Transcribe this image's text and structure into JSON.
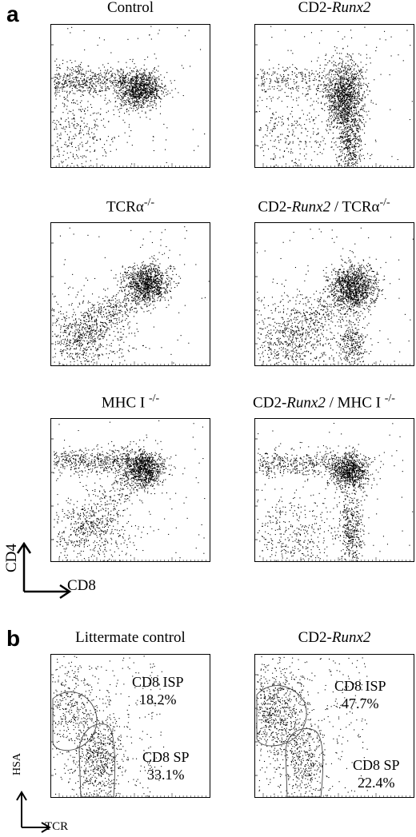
{
  "panel_a_label": "a",
  "panel_b_label": "b",
  "panel_a": {
    "x_axis_label": "CD8",
    "y_axis_label": "CD4",
    "plots": [
      {
        "title_pre": "Control",
        "title_italic": "",
        "title_post": "",
        "sup": ""
      },
      {
        "title_pre": "CD2-",
        "title_italic": "Runx2",
        "title_post": "",
        "sup": ""
      },
      {
        "title_pre": "TCRα",
        "title_italic": "",
        "title_post": "",
        "sup": "-/-"
      },
      {
        "title_pre": "CD2-",
        "title_italic": "Runx2",
        "title_post": " / TCRα",
        "sup": "-/-"
      },
      {
        "title_pre": "MHC I ",
        "title_italic": "",
        "title_post": "",
        "sup": "-/-"
      },
      {
        "title_pre": "CD2-",
        "title_italic": "Runx2",
        "title_post": " / MHC I ",
        "sup": "-/-"
      }
    ]
  },
  "panel_b": {
    "x_axis_label": "TCR",
    "y_axis_label": "HSA",
    "plots": [
      {
        "title_pre": "Littermate control",
        "title_italic": "",
        "isp_label": "CD8 ISP",
        "isp_pct": "18.2%",
        "sp_label": "CD8 SP",
        "sp_pct": "33.1%"
      },
      {
        "title_pre": "CD2-",
        "title_italic": "Runx2",
        "isp_label": "CD8 ISP",
        "isp_pct": "47.7%",
        "sp_label": "CD8 SP",
        "sp_pct": "22.4%"
      }
    ]
  },
  "chart_data": [
    {
      "type": "scatter",
      "title": "Control",
      "xlabel": "CD8",
      "ylabel": "CD4",
      "xscale": "log",
      "yscale": "log"
    },
    {
      "type": "scatter",
      "title": "CD2-Runx2",
      "xlabel": "CD8",
      "ylabel": "CD4",
      "xscale": "log",
      "yscale": "log"
    },
    {
      "type": "scatter",
      "title": "TCRα-/-",
      "xlabel": "CD8",
      "ylabel": "CD4",
      "xscale": "log",
      "yscale": "log"
    },
    {
      "type": "scatter",
      "title": "CD2-Runx2 / TCRα-/-",
      "xlabel": "CD8",
      "ylabel": "CD4",
      "xscale": "log",
      "yscale": "log"
    },
    {
      "type": "scatter",
      "title": "MHC I -/-",
      "xlabel": "CD8",
      "ylabel": "CD4",
      "xscale": "log",
      "yscale": "log"
    },
    {
      "type": "scatter",
      "title": "CD2-Runx2 / MHC I -/-",
      "xlabel": "CD8",
      "ylabel": "CD4",
      "xscale": "log",
      "yscale": "log"
    },
    {
      "type": "scatter",
      "title": "Littermate control",
      "xlabel": "TCR",
      "ylabel": "HSA",
      "gates": [
        {
          "name": "CD8 ISP",
          "percent": 18.2
        },
        {
          "name": "CD8 SP",
          "percent": 33.1
        }
      ]
    },
    {
      "type": "scatter",
      "title": "CD2-Runx2",
      "xlabel": "TCR",
      "ylabel": "HSA",
      "gates": [
        {
          "name": "CD8 ISP",
          "percent": 47.7
        },
        {
          "name": "CD8 SP",
          "percent": 22.4
        }
      ]
    }
  ]
}
